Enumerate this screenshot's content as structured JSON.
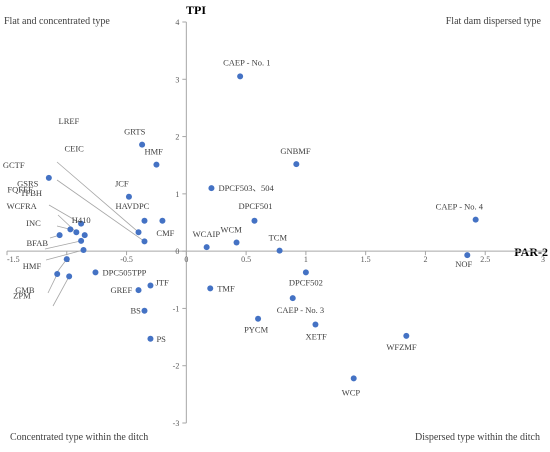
{
  "chart_data": {
    "type": "scatter",
    "xlabel": "PAR-2",
    "ylabel": "TPI",
    "xlim": [
      -1.5,
      3
    ],
    "ylim": [
      -3,
      4
    ],
    "x_ticks": [
      "-1.5",
      "-1",
      "-0.5",
      "0",
      "0.5",
      "1",
      "1.5",
      "2",
      "2.5",
      "3"
    ],
    "y_ticks": [
      "-3",
      "-2",
      "-1",
      "0",
      "1",
      "2",
      "3",
      "4"
    ],
    "grid": false,
    "point_color": "#4472C4",
    "quadrant_labels": {
      "top_left": "Flat and concentrated type",
      "top_right": "Flat dam dispersed type",
      "bottom_left": "Concentrated type within the ditch",
      "bottom_right": "Dispersed type within the ditch"
    },
    "points": [
      {
        "label": "CAEP - No. 1",
        "x": 0.45,
        "y": 3.05
      },
      {
        "label": "GRTS",
        "x": -0.37,
        "y": 1.86
      },
      {
        "label": "HMF",
        "x": -0.25,
        "y": 1.51
      },
      {
        "label": "GNBMF",
        "x": 0.92,
        "y": 1.52
      },
      {
        "label": "JCF",
        "x": -0.48,
        "y": 0.95
      },
      {
        "label": "DPCF503、504",
        "x": 0.21,
        "y": 1.1
      },
      {
        "label": "HAVDPC",
        "x": -0.35,
        "y": 0.53
      },
      {
        "label": "CMF",
        "x": -0.2,
        "y": 0.53
      },
      {
        "label": "DPCF501",
        "x": 0.57,
        "y": 0.53
      },
      {
        "label": "WCAIP",
        "x": 0.17,
        "y": 0.07
      },
      {
        "label": "WCM",
        "x": 0.42,
        "y": 0.15
      },
      {
        "label": "TCM",
        "x": 0.78,
        "y": 0.01
      },
      {
        "label": "CAEP - No. 4",
        "x": 2.42,
        "y": 0.55
      },
      {
        "label": "NOF",
        "x": 2.35,
        "y": -0.07
      },
      {
        "label": "DPCF502",
        "x": 1.0,
        "y": -0.37
      },
      {
        "label": "LREF",
        "x": -0.4,
        "y": 0.33
      },
      {
        "label": "CEIC",
        "x": -0.35,
        "y": 0.17
      },
      {
        "label": "GCTF",
        "x": -1.15,
        "y": 1.28
      },
      {
        "label": "GSRS",
        "x": -0.88,
        "y": 0.48
      },
      {
        "label": "TFBH",
        "x": -0.92,
        "y": 0.33
      },
      {
        "label": "H410",
        "x": -0.85,
        "y": 0.28
      },
      {
        "label": "FQFEF",
        "x": -0.97,
        "y": 0.38
      },
      {
        "label": "WCFRA",
        "x": -1.06,
        "y": 0.28
      },
      {
        "label": "INC",
        "x": -0.88,
        "y": 0.18
      },
      {
        "label": "BFAB",
        "x": -0.86,
        "y": 0.02
      },
      {
        "label": "HMF",
        "x": -1.0,
        "y": -0.14
      },
      {
        "label": "DPC505TPP",
        "x": -0.76,
        "y": -0.37
      },
      {
        "label": "GMB",
        "x": -1.08,
        "y": -0.4
      },
      {
        "label": "ZPM",
        "x": -0.98,
        "y": -0.44
      },
      {
        "label": "JTF",
        "x": -0.3,
        "y": -0.6
      },
      {
        "label": "GREF",
        "x": -0.4,
        "y": -0.68
      },
      {
        "label": "TMF",
        "x": 0.2,
        "y": -0.65
      },
      {
        "label": "BS",
        "x": -0.35,
        "y": -1.04
      },
      {
        "label": "CAEP - No. 3",
        "x": 0.89,
        "y": -0.82
      },
      {
        "label": "PYCM",
        "x": 0.6,
        "y": -1.18
      },
      {
        "label": "XETF",
        "x": 1.08,
        "y": -1.28
      },
      {
        "label": "WFZMF",
        "x": 1.84,
        "y": -1.48
      },
      {
        "label": "PS",
        "x": -0.3,
        "y": -1.53
      },
      {
        "label": "WCP",
        "x": 1.4,
        "y": -2.22
      }
    ]
  }
}
